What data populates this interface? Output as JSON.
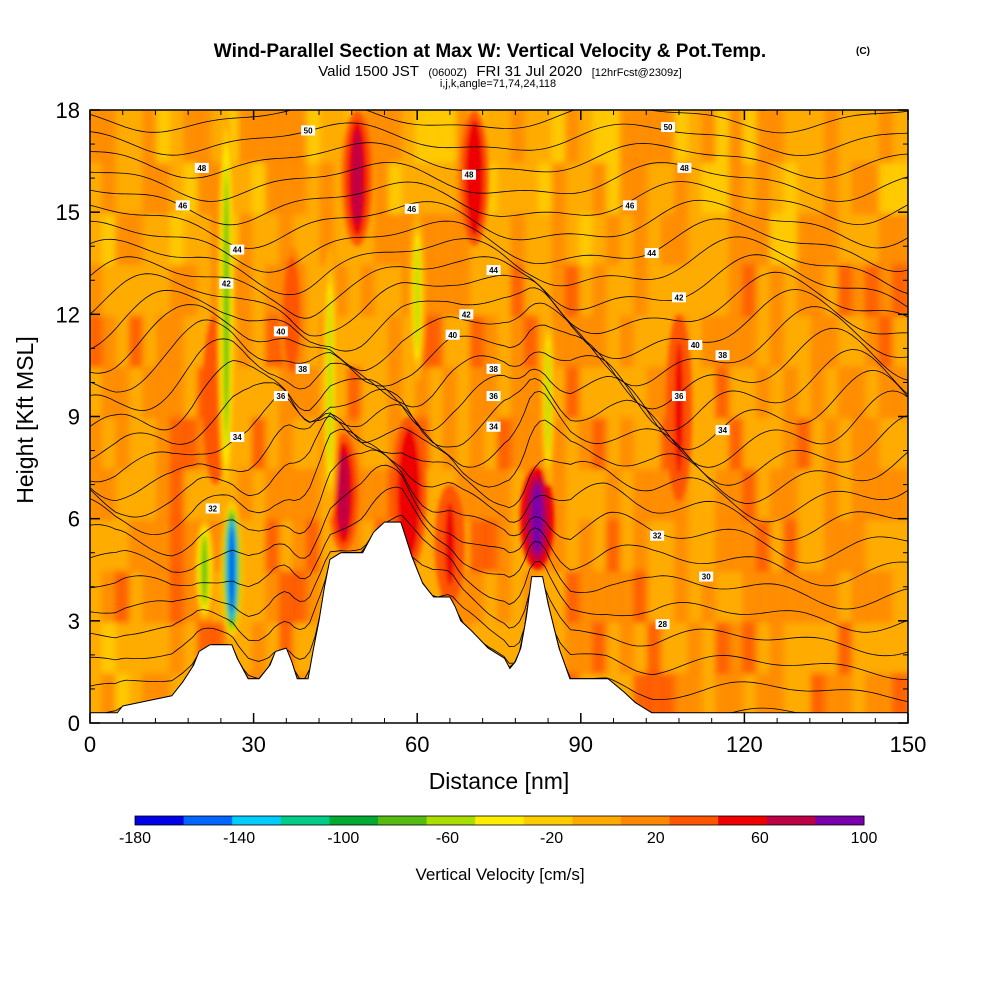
{
  "chart_data": {
    "type": "heatmap",
    "title": "Wind-Parallel Section at Max W: Vertical Velocity & Pot.Temp.",
    "title_mark": "(C)",
    "subtitle": {
      "valid_prefix": "Valid 1500 JST",
      "utc": "(0600Z)",
      "date": "FRI 31 Jul 2020",
      "forecast": "[12hrFcst@2309z]"
    },
    "subtitle2": "i,j,k,angle=71,74,24,118",
    "xlabel": "Distance [nm]",
    "ylabel": "Height [Kft MSL]",
    "xlim": [
      0,
      150
    ],
    "ylim": [
      0,
      18
    ],
    "xticks": [
      0,
      30,
      60,
      90,
      120,
      150
    ],
    "yticks": [
      0,
      3,
      6,
      9,
      12,
      15,
      18
    ],
    "colorbar": {
      "title": "Vertical Velocity [cm/s]",
      "ticks": [
        -180,
        -140,
        -100,
        -60,
        -20,
        20,
        60,
        100
      ],
      "colors": [
        "#0000e6",
        "#0066ff",
        "#00ccff",
        "#00cc88",
        "#00aa33",
        "#55bb11",
        "#aadd00",
        "#ffee00",
        "#ffcc00",
        "#ffaa00",
        "#ff8800",
        "#ff5500",
        "#ee0000",
        "#bb0044",
        "#7700aa"
      ]
    },
    "terrain": [
      [
        0,
        0.3
      ],
      [
        5,
        0.3
      ],
      [
        6,
        0.5
      ],
      [
        15,
        0.8
      ],
      [
        17,
        1.2
      ],
      [
        19,
        1.7
      ],
      [
        20,
        2.1
      ],
      [
        22,
        2.3
      ],
      [
        24,
        2.3
      ],
      [
        26,
        2.3
      ],
      [
        27,
        1.9
      ],
      [
        28,
        1.6
      ],
      [
        29,
        1.3
      ],
      [
        31,
        1.3
      ],
      [
        33,
        1.7
      ],
      [
        34,
        2.1
      ],
      [
        36,
        2.2
      ],
      [
        37,
        1.8
      ],
      [
        38,
        1.3
      ],
      [
        40,
        1.3
      ],
      [
        41,
        2.2
      ],
      [
        42,
        3.0
      ],
      [
        43,
        4.0
      ],
      [
        44,
        4.8
      ],
      [
        46,
        5.0
      ],
      [
        50,
        5.0
      ],
      [
        51,
        5.3
      ],
      [
        52,
        5.6
      ],
      [
        54,
        5.9
      ],
      [
        57,
        5.9
      ],
      [
        58,
        5.4
      ],
      [
        59,
        4.9
      ],
      [
        60,
        4.5
      ],
      [
        61,
        4.1
      ],
      [
        62,
        3.9
      ],
      [
        63,
        3.7
      ],
      [
        66,
        3.7
      ],
      [
        67,
        3.4
      ],
      [
        68,
        3.0
      ],
      [
        70,
        2.7
      ],
      [
        73,
        2.2
      ],
      [
        76,
        1.9
      ],
      [
        77,
        1.6
      ],
      [
        78,
        1.8
      ],
      [
        79,
        2.2
      ],
      [
        80,
        3.1
      ],
      [
        81,
        4.3
      ],
      [
        83,
        4.3
      ],
      [
        84,
        3.5
      ],
      [
        86,
        2.2
      ],
      [
        88,
        1.3
      ],
      [
        95,
        1.3
      ],
      [
        98,
        0.9
      ],
      [
        100,
        0.6
      ],
      [
        103,
        0.3
      ],
      [
        150,
        0.3
      ]
    ],
    "updrafts": [
      {
        "x": 46.5,
        "y0": 5.0,
        "y1": 8.5,
        "w": 30,
        "max": 70
      },
      {
        "x": 49.0,
        "y0": 14.0,
        "y1": 18.0,
        "w": 30,
        "max": 70
      },
      {
        "x": 58.5,
        "y0": 4.5,
        "y1": 9.0,
        "w": 35,
        "max": 60
      },
      {
        "x": 66.0,
        "y0": 3.5,
        "y1": 7.0,
        "w": 30,
        "max": 50
      },
      {
        "x": 70.5,
        "y0": 14.0,
        "y1": 18.0,
        "w": 28,
        "max": 60
      },
      {
        "x": 82.0,
        "y0": 4.5,
        "y1": 7.5,
        "w": 34,
        "max": 95
      },
      {
        "x": 108.0,
        "y0": 6.5,
        "y1": 12.0,
        "w": 26,
        "max": 45
      },
      {
        "x": 23.0,
        "y0": 7.0,
        "y1": 12.0,
        "w": 26,
        "max": 40
      },
      {
        "x": 37.0,
        "y0": 10.0,
        "y1": 14.0,
        "w": 26,
        "max": 35
      }
    ],
    "downdrafts": [
      {
        "x": 26.0,
        "y0": 2.5,
        "y1": 6.5,
        "w": 22,
        "min": -170
      },
      {
        "x": 25.0,
        "y0": 6.5,
        "y1": 18.0,
        "w": 18,
        "min": -70
      },
      {
        "x": 21.0,
        "y0": 3.0,
        "y1": 6.0,
        "w": 20,
        "min": -80
      },
      {
        "x": 44.0,
        "y0": 6.0,
        "y1": 14.0,
        "w": 18,
        "min": -55
      },
      {
        "x": 60.0,
        "y0": 10.0,
        "y1": 15.0,
        "w": 18,
        "min": -60
      },
      {
        "x": 84.0,
        "y0": 7.0,
        "y1": 12.0,
        "w": 16,
        "min": -55
      }
    ],
    "isentropes": {
      "levels": [
        24,
        25,
        26,
        27,
        28,
        29,
        30,
        31,
        32,
        33,
        34,
        35,
        36,
        37,
        38,
        39,
        40,
        41,
        42,
        43,
        44,
        45,
        46,
        47,
        48,
        49,
        50,
        51,
        52
      ],
      "labels": [
        {
          "text": "28",
          "x": 105,
          "y": 2.9
        },
        {
          "text": "30",
          "x": 113,
          "y": 4.3
        },
        {
          "text": "32",
          "x": 104,
          "y": 5.5
        },
        {
          "text": "32",
          "x": 22.5,
          "y": 6.3
        },
        {
          "text": "34",
          "x": 27,
          "y": 8.4
        },
        {
          "text": "34",
          "x": 74,
          "y": 8.7
        },
        {
          "text": "34",
          "x": 116,
          "y": 8.6
        },
        {
          "text": "36",
          "x": 35,
          "y": 9.6
        },
        {
          "text": "36",
          "x": 74,
          "y": 9.6
        },
        {
          "text": "36",
          "x": 108,
          "y": 9.6
        },
        {
          "text": "38",
          "x": 39,
          "y": 10.4
        },
        {
          "text": "38",
          "x": 74,
          "y": 10.4
        },
        {
          "text": "38",
          "x": 116,
          "y": 10.8
        },
        {
          "text": "40",
          "x": 35,
          "y": 11.5
        },
        {
          "text": "40",
          "x": 66.5,
          "y": 11.4
        },
        {
          "text": "40",
          "x": 111,
          "y": 11.1
        },
        {
          "text": "42",
          "x": 25,
          "y": 12.9
        },
        {
          "text": "42",
          "x": 69,
          "y": 12.0
        },
        {
          "text": "42",
          "x": 108,
          "y": 12.5
        },
        {
          "text": "44",
          "x": 27,
          "y": 13.9
        },
        {
          "text": "44",
          "x": 74,
          "y": 13.3
        },
        {
          "text": "44",
          "x": 103,
          "y": 13.8
        },
        {
          "text": "46",
          "x": 17,
          "y": 15.2
        },
        {
          "text": "46",
          "x": 59,
          "y": 15.1
        },
        {
          "text": "46",
          "x": 99,
          "y": 15.2
        },
        {
          "text": "48",
          "x": 20.5,
          "y": 16.3
        },
        {
          "text": "48",
          "x": 69.5,
          "y": 16.1
        },
        {
          "text": "48",
          "x": 109,
          "y": 16.3
        },
        {
          "text": "50",
          "x": 40,
          "y": 17.4
        },
        {
          "text": "50",
          "x": 106,
          "y": 17.5
        }
      ]
    }
  }
}
